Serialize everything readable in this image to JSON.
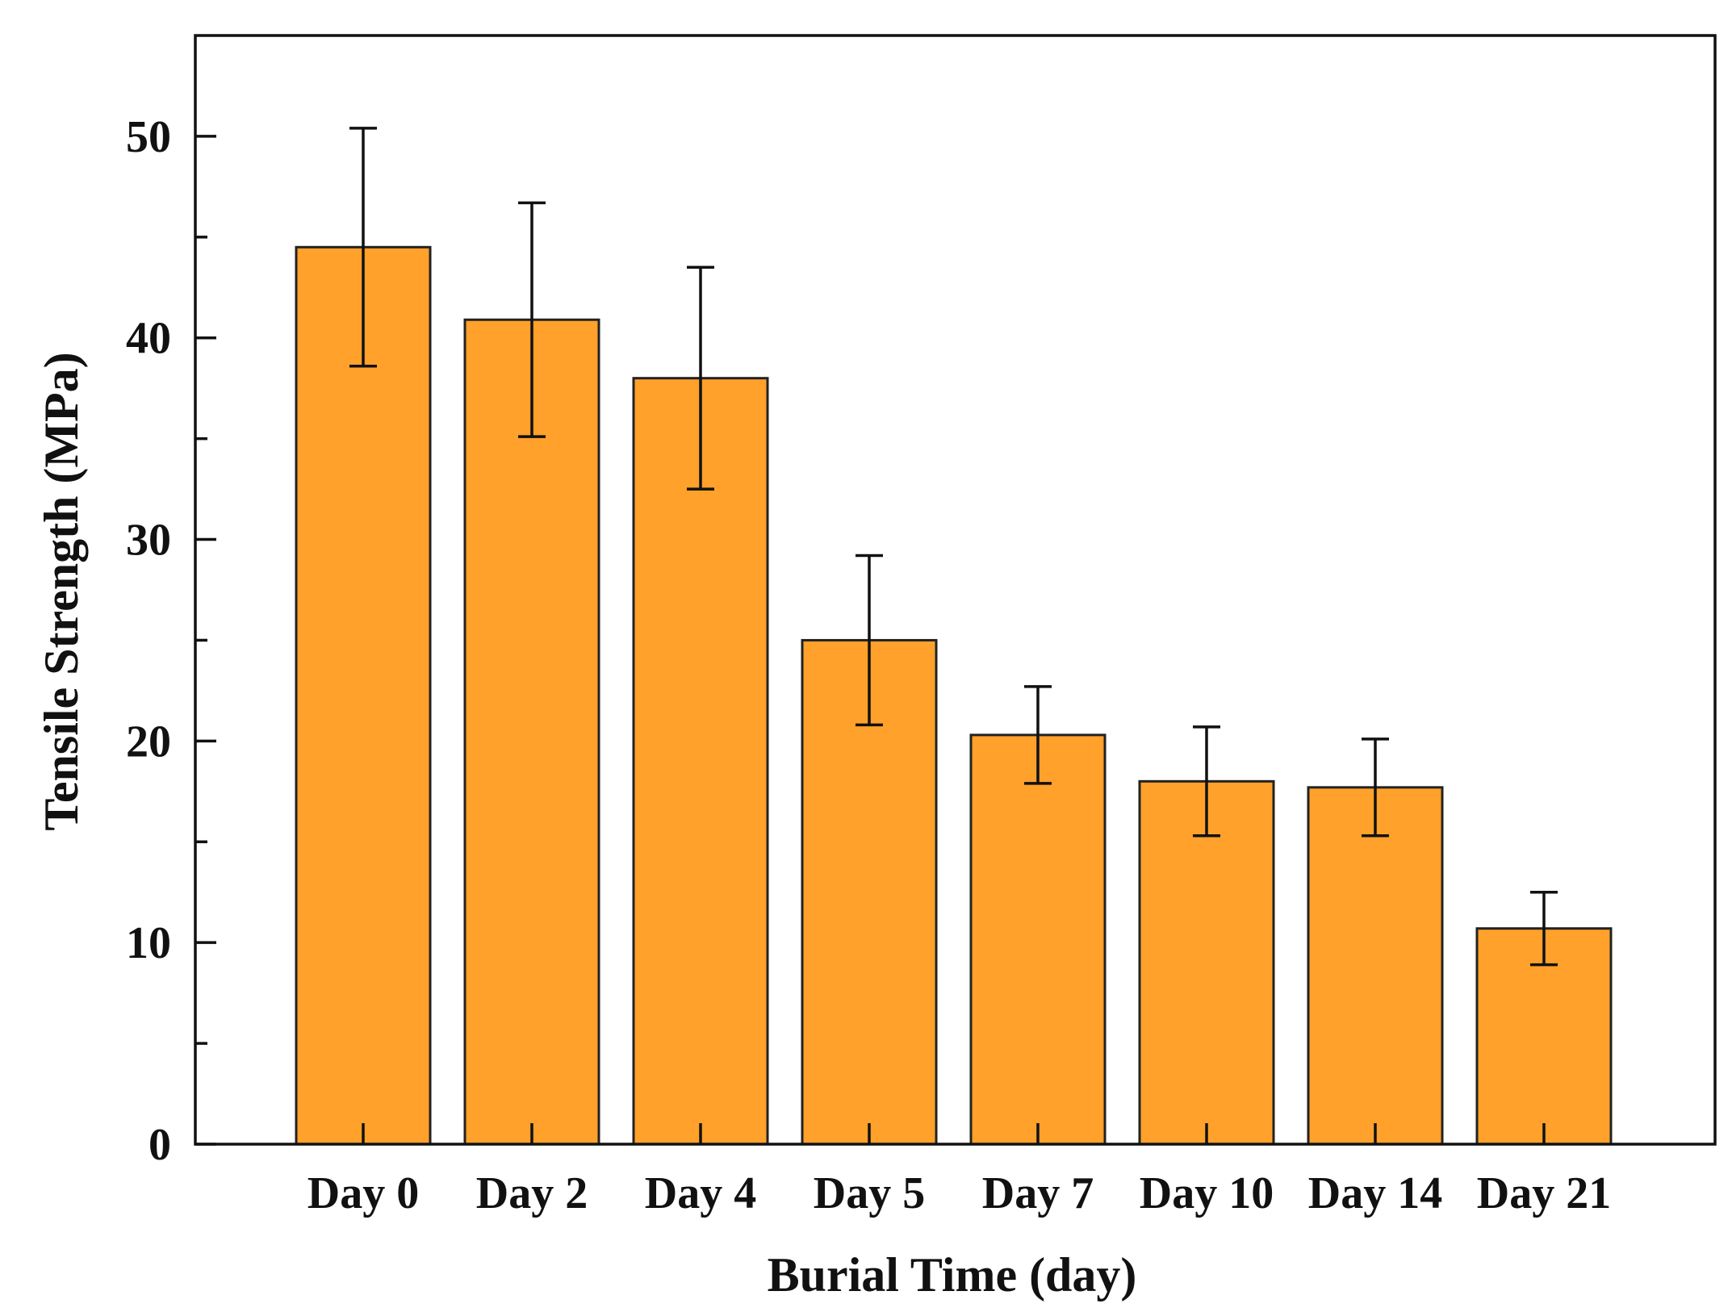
{
  "chart_data": {
    "type": "bar",
    "title": "",
    "xlabel": "Burial Time (day)",
    "ylabel": "Tensile Strength (MPa)",
    "categories": [
      "Day 0",
      "Day 2",
      "Day 4",
      "Day 5",
      "Day 7",
      "Day 10",
      "Day 14",
      "Day 21"
    ],
    "series": [
      {
        "name": "Tensile Strength",
        "values": [
          44.5,
          40.9,
          38.0,
          25.0,
          20.3,
          18.0,
          17.7,
          10.7
        ],
        "error": [
          5.9,
          5.8,
          5.5,
          4.2,
          2.4,
          2.7,
          2.4,
          1.8
        ]
      }
    ],
    "ylim": [
      0,
      55
    ],
    "yticks": [
      0,
      10,
      20,
      30,
      40,
      50
    ],
    "yminor_step": 5,
    "grid": false,
    "legend": "none",
    "colors": {
      "bar": "#FFA12A",
      "edge": "#222222",
      "axis": "#111111"
    }
  }
}
